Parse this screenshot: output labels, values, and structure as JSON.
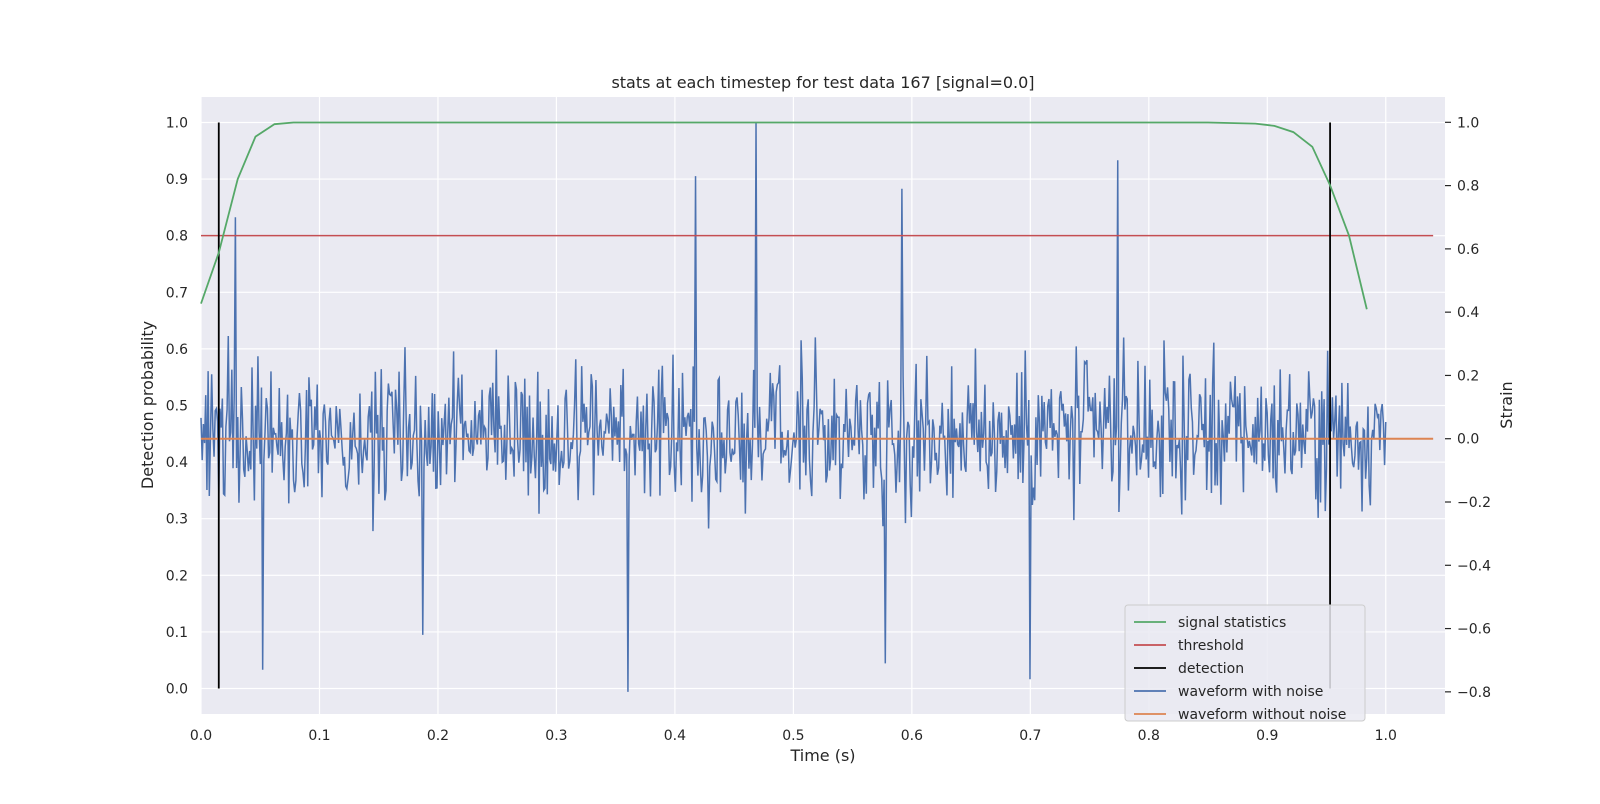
{
  "chart_data": {
    "type": "line",
    "title": "stats at each timestep for test data 167 [signal=0.0]",
    "xlabel": "Time (s)",
    "ylabel_left": "Detection probability",
    "ylabel_right": "Strain",
    "xlim": [
      0.0,
      1.05
    ],
    "ylim_left": [
      -0.045,
      1.045
    ],
    "ylim_right": [
      -0.87,
      1.08
    ],
    "x_ticks": [
      "0.0",
      "0.1",
      "0.2",
      "0.3",
      "0.4",
      "0.5",
      "0.6",
      "0.7",
      "0.8",
      "0.9",
      "1.0"
    ],
    "y_ticks_left": [
      "0.0",
      "0.1",
      "0.2",
      "0.3",
      "0.4",
      "0.5",
      "0.6",
      "0.7",
      "0.8",
      "0.9",
      "1.0"
    ],
    "y_ticks_right": [
      "−0.8",
      "−0.6",
      "−0.4",
      "−0.2",
      "0.0",
      "0.2",
      "0.4",
      "0.6",
      "0.8",
      "1.0"
    ],
    "grid": true,
    "legend_position": "lower-right",
    "colors": {
      "background": "#eaeaf2",
      "grid": "#ffffff",
      "signal_statistics": "#55a868",
      "threshold": "#c44e52",
      "detection": "#000000",
      "waveform_with_noise": "#4c72b0",
      "waveform_without_noise": "#dd8452"
    },
    "series": [
      {
        "name": "signal statistics",
        "axis": "left",
        "x": [
          0.0,
          0.015,
          0.031,
          0.046,
          0.062,
          0.078,
          0.1,
          0.2,
          0.3,
          0.4,
          0.5,
          0.6,
          0.7,
          0.8,
          0.85,
          0.89,
          0.906,
          0.922,
          0.938,
          0.953,
          0.969,
          0.984
        ],
        "values": [
          0.68,
          0.77,
          0.9,
          0.975,
          0.997,
          1.0,
          1.0,
          1.0,
          1.0,
          1.0,
          1.0,
          1.0,
          1.0,
          1.0,
          1.0,
          0.998,
          0.994,
          0.983,
          0.957,
          0.889,
          0.8,
          0.67
        ]
      },
      {
        "name": "threshold",
        "axis": "left",
        "x": [
          0.0,
          1.04
        ],
        "values": [
          0.8,
          0.8
        ]
      },
      {
        "name": "detection",
        "axis": "left",
        "vertical_lines_x": [
          0.015,
          0.953
        ],
        "range": [
          0.0,
          1.0
        ]
      },
      {
        "name": "waveform with noise",
        "axis": "right",
        "n_points": 1000,
        "x_range": [
          0.0,
          1.0
        ],
        "y_range": [
          -0.8,
          1.0
        ],
        "peaks": [
          {
            "x": 0.029,
            "y": 0.7
          },
          {
            "x": 0.052,
            "y": -0.73
          },
          {
            "x": 0.187,
            "y": -0.62
          },
          {
            "x": 0.36,
            "y": -0.8
          },
          {
            "x": 0.417,
            "y": 0.83
          },
          {
            "x": 0.468,
            "y": 1.0
          },
          {
            "x": 0.578,
            "y": -0.71
          },
          {
            "x": 0.592,
            "y": 0.79
          },
          {
            "x": 0.7,
            "y": -0.76
          },
          {
            "x": 0.774,
            "y": 0.88
          }
        ]
      },
      {
        "name": "waveform without noise",
        "axis": "right",
        "x": [
          0.0,
          1.04
        ],
        "values": [
          0.0,
          0.0
        ]
      }
    ]
  }
}
